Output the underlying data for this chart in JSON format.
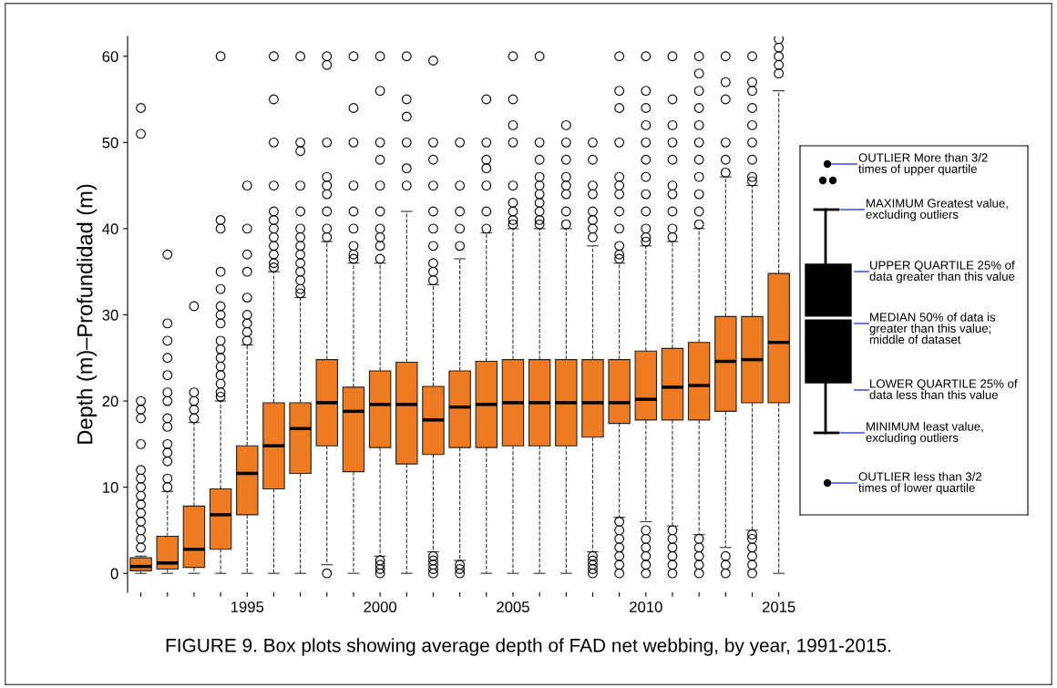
{
  "chart_data": {
    "type": "box",
    "ylabel": "Depth (m)–Profundidad (m)",
    "color": "#ee7b22",
    "line_style": "dashed",
    "marker": "circle",
    "categories": [
      null,
      null,
      null,
      null,
      "1995",
      null,
      null,
      null,
      null,
      "2000",
      null,
      null,
      null,
      null,
      "2005",
      null,
      null,
      null,
      null,
      "2010",
      null,
      null,
      null,
      null,
      "2015"
    ],
    "ylim": [
      -2.2,
      62.3
    ],
    "yticks": [
      0,
      10,
      20,
      30,
      40,
      50,
      60
    ],
    "boxes": [
      {
        "low": 0,
        "q1": 0.3,
        "median": 0.8,
        "q3": 1.8,
        "high": 2,
        "outliers": [
          3,
          4,
          5,
          6,
          7,
          8,
          9,
          10,
          11,
          12,
          15,
          18,
          19,
          20,
          51,
          54
        ]
      },
      {
        "low": 0,
        "q1": 0.5,
        "median": 1.2,
        "q3": 4.3,
        "high": 9.5,
        "outliers": [
          10,
          11,
          13,
          14,
          15,
          17,
          18,
          20,
          21,
          23,
          25,
          27,
          29,
          37
        ]
      },
      {
        "low": 0,
        "q1": 0.7,
        "median": 2.8,
        "q3": 7.8,
        "high": 17.5,
        "outliers": [
          18,
          19,
          20,
          21,
          31
        ]
      },
      {
        "low": 0,
        "q1": 2.8,
        "median": 6.8,
        "q3": 9.8,
        "high": 20,
        "outliers": [
          20.5,
          21,
          22,
          23,
          24,
          25,
          26,
          27,
          29,
          30,
          31,
          33,
          35,
          40,
          41,
          60
        ]
      },
      {
        "low": 0,
        "q1": 6.8,
        "median": 11.6,
        "q3": 14.8,
        "high": 26.5,
        "outliers": [
          27,
          28,
          29,
          30,
          32,
          35,
          37,
          40,
          45
        ]
      },
      {
        "low": 0,
        "q1": 9.8,
        "median": 14.8,
        "q3": 19.8,
        "high": 35,
        "outliers": [
          35.5,
          36,
          37,
          38,
          39,
          40,
          41,
          42,
          45,
          50,
          55,
          60
        ]
      },
      {
        "low": 0,
        "q1": 11.6,
        "median": 16.8,
        "q3": 19.8,
        "high": 32,
        "outliers": [
          32.5,
          33,
          34,
          35,
          36,
          37,
          38,
          39,
          40,
          42,
          45,
          49,
          50,
          60
        ]
      },
      {
        "low": 1,
        "q1": 14.8,
        "median": 19.8,
        "q3": 24.8,
        "high": 38.5,
        "outliers": [
          0,
          39,
          40,
          42,
          44,
          45,
          46,
          50,
          59,
          60
        ]
      },
      {
        "low": 0,
        "q1": 11.8,
        "median": 18.8,
        "q3": 21.6,
        "high": 36,
        "outliers": [
          36.5,
          37,
          38,
          40,
          42,
          45,
          50,
          54,
          60
        ]
      },
      {
        "low": 2,
        "q1": 14.6,
        "median": 19.6,
        "q3": 23.5,
        "high": 36,
        "outliers": [
          0,
          0.5,
          1,
          1.5,
          36.5,
          38,
          39,
          40,
          42,
          45,
          48,
          50,
          56,
          60
        ]
      },
      {
        "low": 0,
        "q1": 12.7,
        "median": 19.6,
        "q3": 24.5,
        "high": 42,
        "outliers": [
          45,
          47,
          50,
          53,
          55,
          60
        ]
      },
      {
        "low": 2.5,
        "q1": 13.8,
        "median": 17.8,
        "q3": 21.7,
        "high": 33.5,
        "outliers": [
          0,
          0.5,
          1,
          1.5,
          2,
          34,
          35,
          36,
          38,
          40,
          42,
          45,
          48,
          50,
          59.5
        ]
      },
      {
        "low": 1.5,
        "q1": 14.6,
        "median": 19.3,
        "q3": 23.5,
        "high": 36.5,
        "outliers": [
          0,
          0.5,
          1,
          38,
          40,
          42,
          45,
          50
        ]
      },
      {
        "low": 0,
        "q1": 14.6,
        "median": 19.6,
        "q3": 24.6,
        "high": 39.5,
        "outliers": [
          40,
          42,
          45,
          47,
          48,
          50,
          55
        ]
      },
      {
        "low": 0,
        "q1": 14.8,
        "median": 19.8,
        "q3": 24.8,
        "high": 40,
        "outliers": [
          40.5,
          41,
          42,
          43,
          45,
          50,
          52,
          55,
          60
        ]
      },
      {
        "low": 0,
        "q1": 14.8,
        "median": 19.8,
        "q3": 24.8,
        "high": 40,
        "outliers": [
          40.5,
          41,
          42,
          43,
          44,
          45,
          46,
          48,
          50,
          60
        ]
      },
      {
        "low": 0,
        "q1": 14.8,
        "median": 19.8,
        "q3": 24.8,
        "high": 40,
        "outliers": [
          40.5,
          42,
          44,
          45,
          46,
          48,
          50,
          52
        ]
      },
      {
        "low": 2.5,
        "q1": 15.8,
        "median": 19.8,
        "q3": 24.8,
        "high": 38,
        "outliers": [
          0,
          0.5,
          1,
          1.5,
          2,
          39,
          40,
          41,
          42,
          44,
          45,
          48,
          50
        ]
      },
      {
        "low": 6.5,
        "q1": 17.4,
        "median": 19.8,
        "q3": 24.8,
        "high": 36,
        "outliers": [
          0,
          1,
          2,
          3,
          4,
          5,
          6,
          36.5,
          37,
          38,
          40,
          42,
          44,
          45,
          46,
          50,
          54,
          56,
          60
        ]
      },
      {
        "low": 6,
        "q1": 17.8,
        "median": 20.2,
        "q3": 25.8,
        "high": 38,
        "outliers": [
          0,
          1,
          2,
          3,
          4,
          5,
          38.5,
          39,
          40,
          42,
          44,
          46,
          48,
          50,
          52,
          54,
          56,
          60
        ]
      },
      {
        "low": 5.5,
        "q1": 17.8,
        "median": 21.6,
        "q3": 26.1,
        "high": 38.5,
        "outliers": [
          0,
          1,
          2,
          3,
          4,
          5,
          39,
          40,
          42,
          44,
          45,
          48,
          50,
          52,
          55,
          60
        ]
      },
      {
        "low": 4.5,
        "q1": 17.8,
        "median": 21.8,
        "q3": 26.8,
        "high": 40,
        "outliers": [
          0,
          1,
          2,
          3,
          4,
          40.5,
          42,
          44,
          46,
          48,
          50,
          52,
          54,
          56,
          58,
          60
        ]
      },
      {
        "low": 3,
        "q1": 18.8,
        "median": 24.6,
        "q3": 29.8,
        "high": 46,
        "outliers": [
          0,
          1,
          2,
          46.5,
          48,
          50,
          55,
          57,
          60
        ]
      },
      {
        "low": 5,
        "q1": 19.8,
        "median": 24.8,
        "q3": 29.8,
        "high": 45,
        "outliers": [
          0,
          1,
          2,
          3,
          4,
          4.5,
          45.5,
          46,
          48,
          50,
          52,
          54,
          56,
          57,
          60
        ]
      },
      {
        "low": 0,
        "q1": 19.8,
        "median": 26.8,
        "q3": 34.8,
        "high": 56,
        "outliers": [
          58,
          59,
          60,
          61,
          62
        ]
      }
    ],
    "annotations": [
      "OUTLIER More than 3/2\ntimes of upper quartile",
      "MAXIMUM Greatest value,\nexcluding outliers",
      "UPPER QUARTILE 25% of\ndata greater than this value",
      "MEDIAN 50% of data is\ngreater than this value;\nmiddle of dataset",
      "LOWER QUARTILE 25% of\ndata less than this value",
      "MINIMUM least value,\nexcluding outliers",
      "OUTLIER less than 3/2\ntimes of lower quartile",
      "FIGURE 9. Box plots showing average depth of FAD net webbing, by year, 1991-2015."
    ]
  }
}
